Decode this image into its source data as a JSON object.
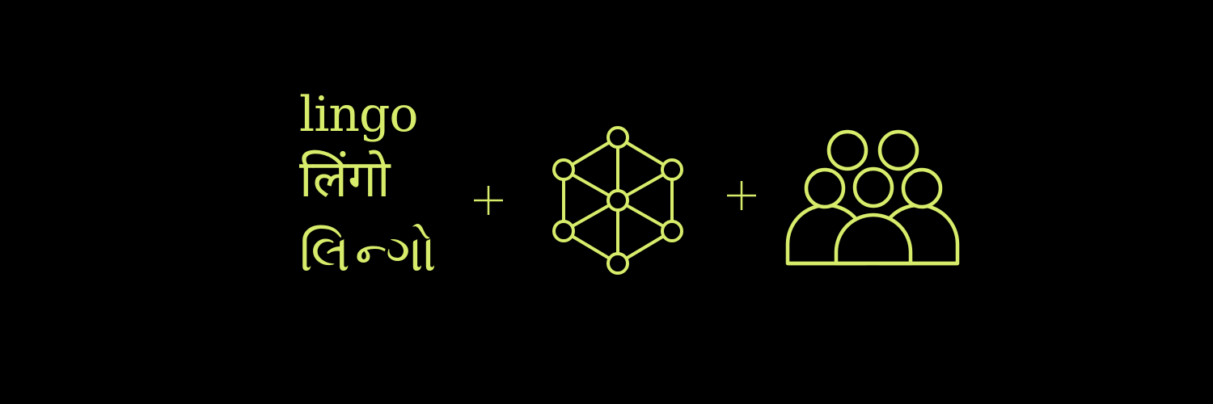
{
  "accent_color": "#d7ec6b",
  "background_color": "#000000",
  "words": {
    "latin": "lingo",
    "devanagari": "लिंगो",
    "gujarati": "લિન્ગો"
  },
  "operators": [
    "+",
    "+"
  ],
  "icons": [
    "network-graph-icon",
    "people-group-icon"
  ]
}
